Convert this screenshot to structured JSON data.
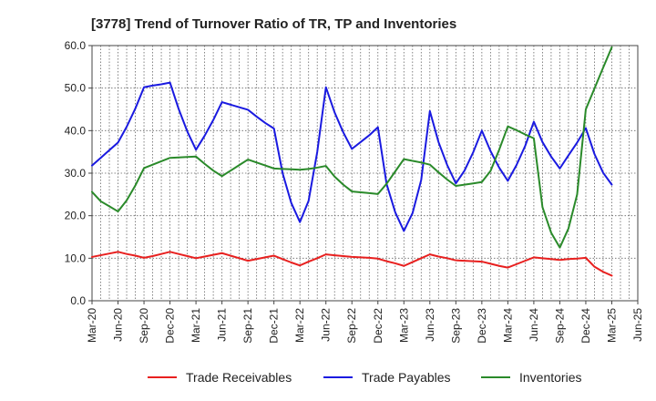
{
  "chart_data": {
    "type": "line",
    "title": "[3778]  Trend of Turnover Ratio of TR, TP and Inventories",
    "xlabel": "",
    "ylabel": "",
    "ylim": [
      0,
      60
    ],
    "yticks": [
      "0.0",
      "10.0",
      "20.0",
      "30.0",
      "40.0",
      "50.0",
      "60.0"
    ],
    "xticks": [
      "Mar-20",
      "Jun-20",
      "Sep-20",
      "Dec-20",
      "Mar-21",
      "Jun-21",
      "Sep-21",
      "Dec-21",
      "Mar-22",
      "Jun-22",
      "Sep-22",
      "Dec-22",
      "Mar-23",
      "Jun-23",
      "Sep-23",
      "Dec-23",
      "Mar-24",
      "Jun-24",
      "Sep-24",
      "Dec-24",
      "Mar-25",
      "Jun-25"
    ],
    "grid": true,
    "legend_position": "bottom",
    "x": [
      "Mar-20",
      "Apr-20",
      "May-20",
      "Jun-20",
      "Jul-20",
      "Aug-20",
      "Sep-20",
      "Oct-20",
      "Nov-20",
      "Dec-20",
      "Jan-21",
      "Feb-21",
      "Mar-21",
      "Apr-21",
      "May-21",
      "Jun-21",
      "Jul-21",
      "Aug-21",
      "Sep-21",
      "Oct-21",
      "Nov-21",
      "Dec-21",
      "Jan-22",
      "Feb-22",
      "Mar-22",
      "Apr-22",
      "May-22",
      "Jun-22",
      "Jul-22",
      "Aug-22",
      "Sep-22",
      "Oct-22",
      "Nov-22",
      "Dec-22",
      "Jan-23",
      "Feb-23",
      "Mar-23",
      "Apr-23",
      "May-23",
      "Jun-23",
      "Jul-23",
      "Aug-23",
      "Sep-23",
      "Oct-23",
      "Nov-23",
      "Dec-23",
      "Jan-24",
      "Feb-24",
      "Mar-24",
      "Apr-24",
      "May-24",
      "Jun-24",
      "Jul-24",
      "Aug-24",
      "Sep-24",
      "Oct-24",
      "Nov-24",
      "Dec-24",
      "Jan-25",
      "Feb-25",
      "Mar-25"
    ],
    "series": [
      {
        "name": "Trade Receivables",
        "color": "#e8201f",
        "values": [
          10.3,
          10.7,
          11.1,
          11.5,
          11.0,
          10.6,
          10.1,
          10.5,
          11.0,
          11.5,
          11.0,
          10.5,
          10.0,
          10.4,
          10.8,
          11.2,
          10.6,
          10.0,
          9.4,
          9.8,
          10.2,
          10.6,
          9.8,
          9.0,
          8.3,
          9.2,
          10.0,
          10.9,
          10.7,
          10.5,
          10.3,
          10.2,
          10.1,
          9.9,
          9.3,
          8.8,
          8.2,
          9.1,
          10.0,
          10.9,
          10.4,
          10.0,
          9.5,
          9.4,
          9.3,
          9.2,
          8.7,
          8.2,
          7.8,
          8.6,
          9.4,
          10.2,
          10.0,
          9.8,
          9.6,
          9.8,
          9.9,
          10.1,
          8.0,
          6.8,
          5.9
        ]
      },
      {
        "name": "Trade Payables",
        "color": "#1a1ae0",
        "values": [
          31.8,
          33.6,
          35.4,
          37.2,
          40.9,
          45.2,
          50.2,
          50.6,
          50.9,
          51.3,
          45.1,
          39.8,
          35.5,
          38.8,
          42.5,
          46.7,
          46.1,
          45.5,
          44.9,
          43.3,
          41.8,
          40.5,
          30.0,
          23.0,
          18.5,
          23.5,
          35.0,
          50.2,
          44.3,
          39.6,
          35.7,
          37.3,
          38.9,
          40.8,
          27.5,
          20.8,
          16.4,
          20.6,
          28.4,
          44.6,
          37.3,
          31.9,
          27.6,
          30.6,
          34.9,
          40.0,
          35.2,
          31.3,
          28.2,
          31.9,
          36.4,
          42.1,
          37.3,
          33.9,
          31.1,
          34.2,
          37.2,
          40.6,
          34.5,
          30.1,
          27.3
        ]
      },
      {
        "name": "Inventories",
        "color": "#2a8a2a",
        "values": [
          25.6,
          23.4,
          22.2,
          21.0,
          23.6,
          27.1,
          31.2,
          32.0,
          32.8,
          33.6,
          33.7,
          33.8,
          33.9,
          32.2,
          30.6,
          29.3,
          30.6,
          31.9,
          33.2,
          32.5,
          31.8,
          31.1,
          31.0,
          30.9,
          30.8,
          31.0,
          31.3,
          31.7,
          29.2,
          27.3,
          25.7,
          25.5,
          25.3,
          25.1,
          27.5,
          30.4,
          33.3,
          32.9,
          32.5,
          32.0,
          30.2,
          28.5,
          27.0,
          27.3,
          27.6,
          27.9,
          30.5,
          35.5,
          41.0,
          40.1,
          39.1,
          38.2,
          22.0,
          16.0,
          12.5,
          17.0,
          25.0,
          45.0,
          49.9,
          54.8,
          59.6
        ]
      }
    ]
  }
}
